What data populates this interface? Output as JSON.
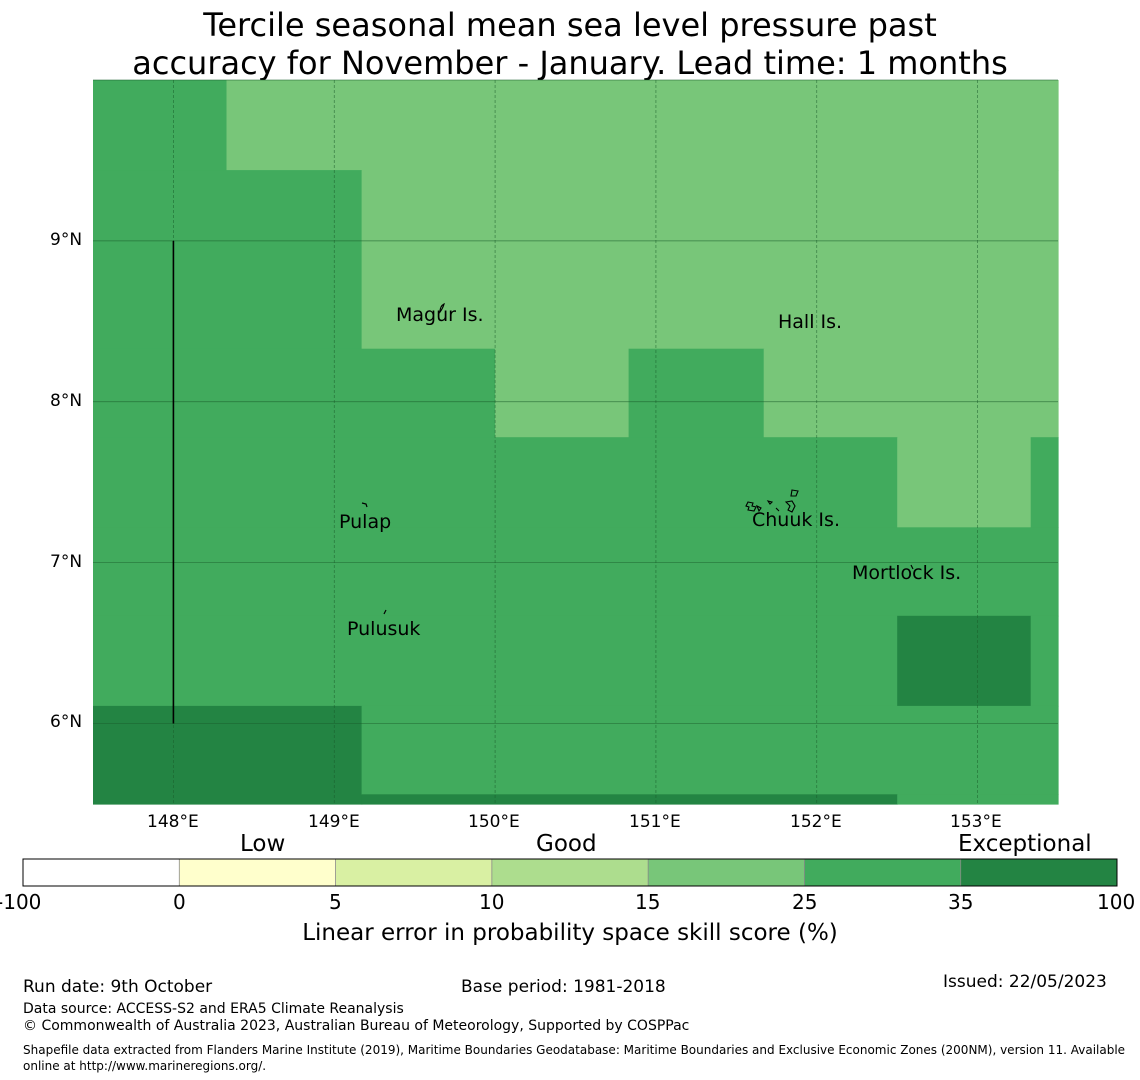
{
  "title": {
    "line1": "Tercile seasonal mean sea level pressure past",
    "line2": "accuracy for November - January. Lead time: 1 months"
  },
  "map": {
    "lat_ticks": [
      "9°N",
      "8°N",
      "7°N",
      "6°N"
    ],
    "lon_ticks": [
      "148°E",
      "149°E",
      "150°E",
      "151°E",
      "152°E",
      "153°E"
    ],
    "extent": {
      "lon": [
        147.5,
        153.5
      ],
      "lat": [
        5.5,
        10.0
      ]
    },
    "grid": {
      "lon_step": 1,
      "lat_step": 1
    },
    "meridian_line": {
      "lon": 148.0,
      "lat": [
        6.0,
        9.0
      ]
    },
    "places": [
      {
        "name": "Magur Is.",
        "lon": 149.68,
        "lat": 8.53
      },
      {
        "name": "Hall Is.",
        "lon": 151.98,
        "lat": 8.49
      },
      {
        "name": "Pulap",
        "lon": 149.42,
        "lat": 7.24
      },
      {
        "name": "Chuuk Is.",
        "lon": 151.85,
        "lat": 7.25
      },
      {
        "name": "Mortlock Is.",
        "lon": 152.58,
        "lat": 6.92
      },
      {
        "name": "Pulusuk",
        "lon": 149.3,
        "lat": 6.59
      }
    ],
    "skill_cells": [
      {
        "lon": [
          147.5,
          148.33
        ],
        "lat": [
          9.44,
          10.0
        ],
        "category": "25-35"
      },
      {
        "lon": [
          148.33,
          153.5
        ],
        "lat": [
          9.44,
          10.0
        ],
        "category": "15-25"
      },
      {
        "lon": [
          147.5,
          149.17
        ],
        "lat": [
          8.33,
          9.44
        ],
        "category": "25-35"
      },
      {
        "lon": [
          149.17,
          153.5
        ],
        "lat": [
          8.33,
          9.44
        ],
        "category": "15-25"
      },
      {
        "lon": [
          147.5,
          150.0
        ],
        "lat": [
          7.78,
          8.33
        ],
        "category": "25-35"
      },
      {
        "lon": [
          150.0,
          150.83
        ],
        "lat": [
          7.78,
          8.33
        ],
        "category": "15-25"
      },
      {
        "lon": [
          150.83,
          151.67
        ],
        "lat": [
          7.78,
          8.33
        ],
        "category": "25-35"
      },
      {
        "lon": [
          151.67,
          153.5
        ],
        "lat": [
          7.78,
          8.33
        ],
        "category": "15-25"
      },
      {
        "lon": [
          147.5,
          152.5
        ],
        "lat": [
          7.22,
          7.78
        ],
        "category": "25-35"
      },
      {
        "lon": [
          152.5,
          153.33
        ],
        "lat": [
          7.22,
          7.78
        ],
        "category": "15-25"
      },
      {
        "lon": [
          153.33,
          153.5
        ],
        "lat": [
          7.22,
          7.78
        ],
        "category": "25-35"
      },
      {
        "lon": [
          147.5,
          153.5
        ],
        "lat": [
          6.67,
          7.22
        ],
        "category": "25-35"
      },
      {
        "lon": [
          147.5,
          152.5
        ],
        "lat": [
          6.11,
          6.67
        ],
        "category": "25-35"
      },
      {
        "lon": [
          152.5,
          153.33
        ],
        "lat": [
          6.11,
          6.67
        ],
        "category": "35-100"
      },
      {
        "lon": [
          153.33,
          153.5
        ],
        "lat": [
          6.11,
          6.67
        ],
        "category": "25-35"
      },
      {
        "lon": [
          147.5,
          149.17
        ],
        "lat": [
          5.5,
          6.11
        ],
        "category": "35-100"
      },
      {
        "lon": [
          149.17,
          153.5
        ],
        "lat": [
          5.56,
          6.11
        ],
        "category": "25-35"
      },
      {
        "lon": [
          149.17,
          152.5
        ],
        "lat": [
          5.5,
          5.56
        ],
        "category": "35-100"
      },
      {
        "lon": [
          152.5,
          153.5
        ],
        "lat": [
          5.5,
          5.56
        ],
        "category": "25-35"
      }
    ]
  },
  "colorbar": {
    "categories": [
      "Low",
      "Good",
      "Exceptional"
    ],
    "ticks": [
      "-100",
      "0",
      "5",
      "10",
      "15",
      "25",
      "35",
      "100"
    ],
    "bins": [
      {
        "range": "-100-0",
        "color": "#ffffff"
      },
      {
        "range": "0-5",
        "color": "#ffffcc"
      },
      {
        "range": "5-10",
        "color": "#d9f0a3"
      },
      {
        "range": "10-15",
        "color": "#addd8e"
      },
      {
        "range": "15-25",
        "color": "#78c679"
      },
      {
        "range": "25-35",
        "color": "#41ab5d"
      },
      {
        "range": "35-100",
        "color": "#238443"
      }
    ],
    "title": "Linear error in probability space skill score (%)"
  },
  "footer": {
    "run_date": "Run date: 9th October",
    "base_period": "Base period: 1981-2018",
    "issued": "Issued: 22/05/2023",
    "data_source": "Data source: ACCESS-S2 and ERA5 Climate Reanalysis",
    "copyright": "© Commonwealth of Australia 2023, Australian Bureau of Meteorology, Supported by COSPPac",
    "shapefile": "Shapefile data extracted from Flanders Marine Institute (2019), Maritime Boundaries Geodatabase: Maritime Boundaries and Exclusive Economic Zones (200NM), version 11. Available online at http://www.marineregions.org/."
  }
}
